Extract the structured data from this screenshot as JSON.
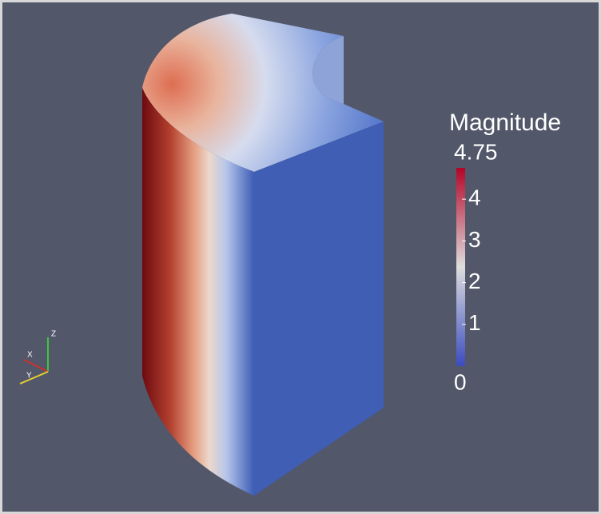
{
  "color_legend": {
    "title": "Magnitude",
    "min": 0,
    "max": 4.75,
    "ticks": [
      1,
      2,
      3,
      4
    ]
  },
  "orientation_axes": {
    "z": "Z",
    "x": "X",
    "y": "Y"
  }
}
